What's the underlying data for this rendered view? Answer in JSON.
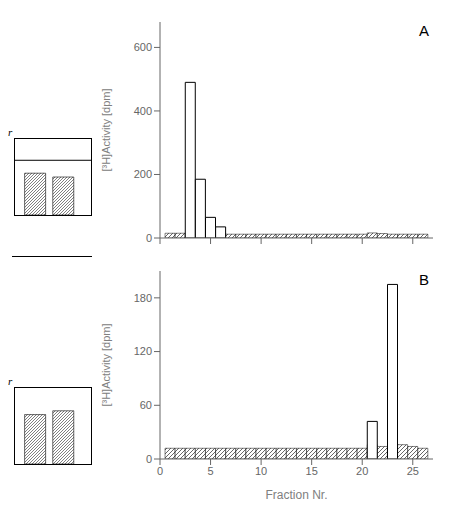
{
  "chart_data": [
    {
      "type": "bar",
      "annotations": [
        "A"
      ],
      "ylabel": "[³H]Activity [dpm]",
      "xlim": [
        0,
        27
      ],
      "xticks": [
        0,
        5,
        10,
        15,
        20,
        25
      ],
      "ylim": [
        0,
        680
      ],
      "yticks": [
        0,
        200,
        400,
        600
      ],
      "tick_labels": "y",
      "series": [
        {
          "x": [
            1,
            2,
            3,
            4,
            5,
            6,
            7,
            8,
            9,
            10,
            11,
            12,
            13,
            14,
            15,
            16,
            17,
            18,
            19,
            20,
            21,
            22,
            23,
            24,
            25,
            26
          ],
          "values": [
            15,
            15,
            15,
            15,
            15,
            15,
            12,
            12,
            12,
            12,
            12,
            12,
            12,
            12,
            12,
            12,
            12,
            12,
            12,
            12,
            16,
            14,
            12,
            12,
            12,
            12
          ]
        },
        {
          "x": [
            3,
            4,
            5,
            6
          ],
          "values": [
            490,
            185,
            65,
            35
          ]
        }
      ]
    },
    {
      "type": "bar",
      "annotations": [
        "B"
      ],
      "ylabel": "[³H]Activity [dpm]",
      "xlabel": "Fraction Nr.",
      "xlim": [
        0,
        27
      ],
      "xticks": [
        0,
        5,
        10,
        15,
        20,
        25
      ],
      "ylim": [
        0,
        210
      ],
      "yticks": [
        0,
        60,
        120,
        180
      ],
      "series": [
        {
          "x": [
            1,
            2,
            3,
            4,
            5,
            6,
            7,
            8,
            9,
            10,
            11,
            12,
            13,
            14,
            15,
            16,
            17,
            18,
            19,
            20,
            21,
            22,
            23,
            24,
            25,
            26
          ],
          "values": [
            12,
            12,
            12,
            12,
            12,
            12,
            12,
            12,
            12,
            12,
            12,
            12,
            12,
            12,
            12,
            12,
            12,
            12,
            12,
            12,
            16,
            14,
            16,
            16,
            14,
            12
          ]
        },
        {
          "x": [
            21,
            23
          ],
          "values": [
            42,
            195
          ]
        }
      ]
    },
    {
      "type": "bar",
      "annotations": [
        "r"
      ],
      "x": [
        1,
        2
      ],
      "values": [
        0.55,
        0.5
      ],
      "xlim": [
        0.3,
        3.0
      ],
      "ylim": [
        0,
        1.0
      ],
      "tick_labels": false,
      "reference_line": 0.72
    },
    {
      "type": "bar",
      "annotations": [
        "r"
      ],
      "x": [
        1,
        2
      ],
      "values": [
        0.65,
        0.7
      ],
      "xlim": [
        0.3,
        3.0
      ],
      "ylim": [
        0,
        1.0
      ],
      "tick_labels": false
    }
  ]
}
